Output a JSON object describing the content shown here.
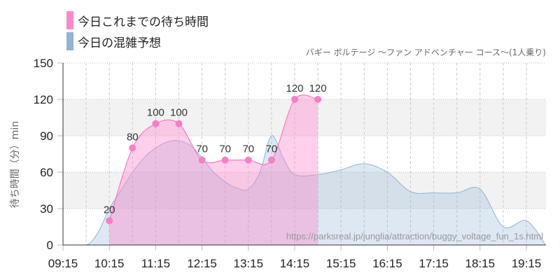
{
  "chart_data": {
    "type": "area",
    "subtitle": "バギー ボルテージ 〜ファン アドベンチャー コース〜(1人乗り)",
    "ylabel": "待ち時間（分）min",
    "ylim": [
      0,
      150
    ],
    "yticks": [
      "0",
      "30",
      "60",
      "90",
      "120",
      "150"
    ],
    "xticks": [
      "09:15",
      "10:15",
      "11:15",
      "12:15",
      "13:15",
      "14:15",
      "15:15",
      "16:15",
      "17:15",
      "18:15",
      "19:15"
    ],
    "grid": true,
    "legend_placement": "top-left",
    "watermark": "https://parksreal.jp/junglia/attraction/buggy_voltage_fun_1s.html",
    "series": [
      {
        "name": "今日これまでの待ち時間",
        "color": "#ff88cc",
        "x": [
          "10:15",
          "10:45",
          "11:15",
          "11:45",
          "12:15",
          "12:45",
          "13:15",
          "13:45",
          "14:15",
          "14:45"
        ],
        "values": [
          20,
          80,
          100,
          100,
          70,
          70,
          70,
          70,
          120,
          120
        ],
        "labels": [
          "20",
          "80",
          "100",
          "100",
          "70",
          "70",
          "70",
          "70",
          "120",
          "120"
        ]
      },
      {
        "name": "今日の混雑予想",
        "color": "#8fb4d4",
        "x": [
          "09:15",
          "09:45",
          "10:00",
          "10:15",
          "10:30",
          "10:45",
          "11:00",
          "11:15",
          "11:30",
          "11:45",
          "12:00",
          "12:15",
          "12:30",
          "12:45",
          "13:00",
          "13:15",
          "13:30",
          "13:45",
          "14:00",
          "14:15",
          "14:45",
          "15:15",
          "15:45",
          "16:15",
          "16:45",
          "17:15",
          "17:45",
          "18:15",
          "18:45",
          "19:15",
          "19:40"
        ],
        "values": [
          0,
          0,
          10,
          30,
          45,
          60,
          72,
          80,
          85,
          86,
          82,
          72,
          60,
          52,
          47,
          46,
          60,
          90,
          72,
          58,
          58,
          62,
          67,
          60,
          44,
          43,
          43,
          46,
          15,
          20,
          0
        ]
      }
    ]
  }
}
